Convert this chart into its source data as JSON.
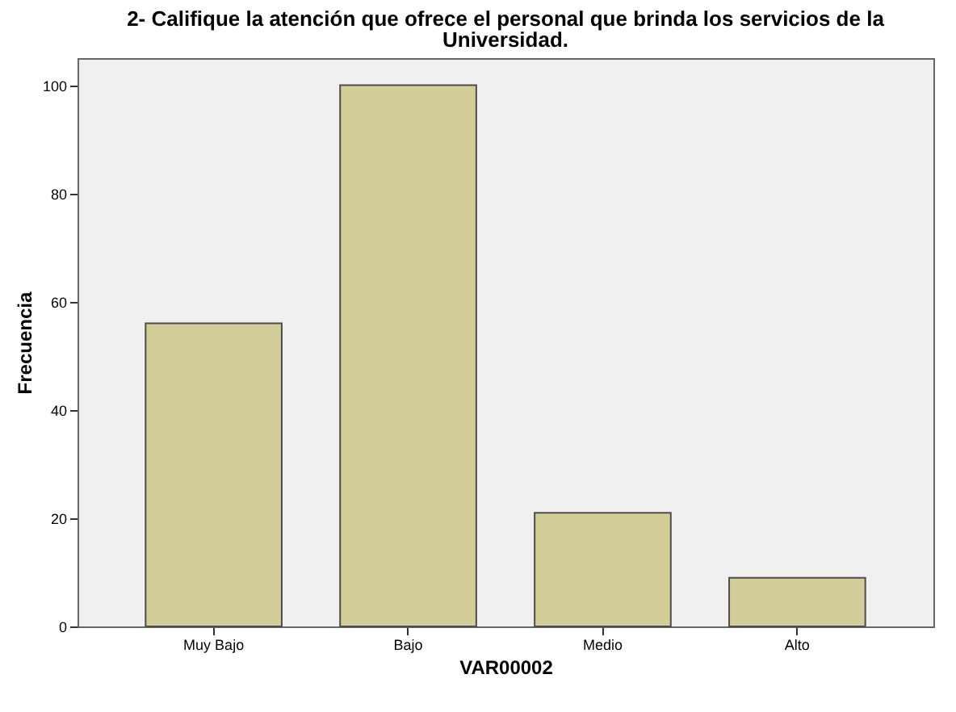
{
  "chart_data": {
    "type": "bar",
    "title": "2- Califique la atención que ofrece el personal que brinda los servicios de la\nUniversidad.",
    "xlabel": "VAR00002",
    "ylabel": "Frecuencia",
    "categories": [
      "Muy Bajo",
      "Bajo",
      "Medio",
      "Alto"
    ],
    "values": [
      56,
      100,
      21,
      9
    ],
    "color": "#d3ce97",
    "ylim": [
      0,
      105
    ],
    "yticks": [
      0,
      20,
      40,
      60,
      80,
      100
    ],
    "grid": false
  }
}
